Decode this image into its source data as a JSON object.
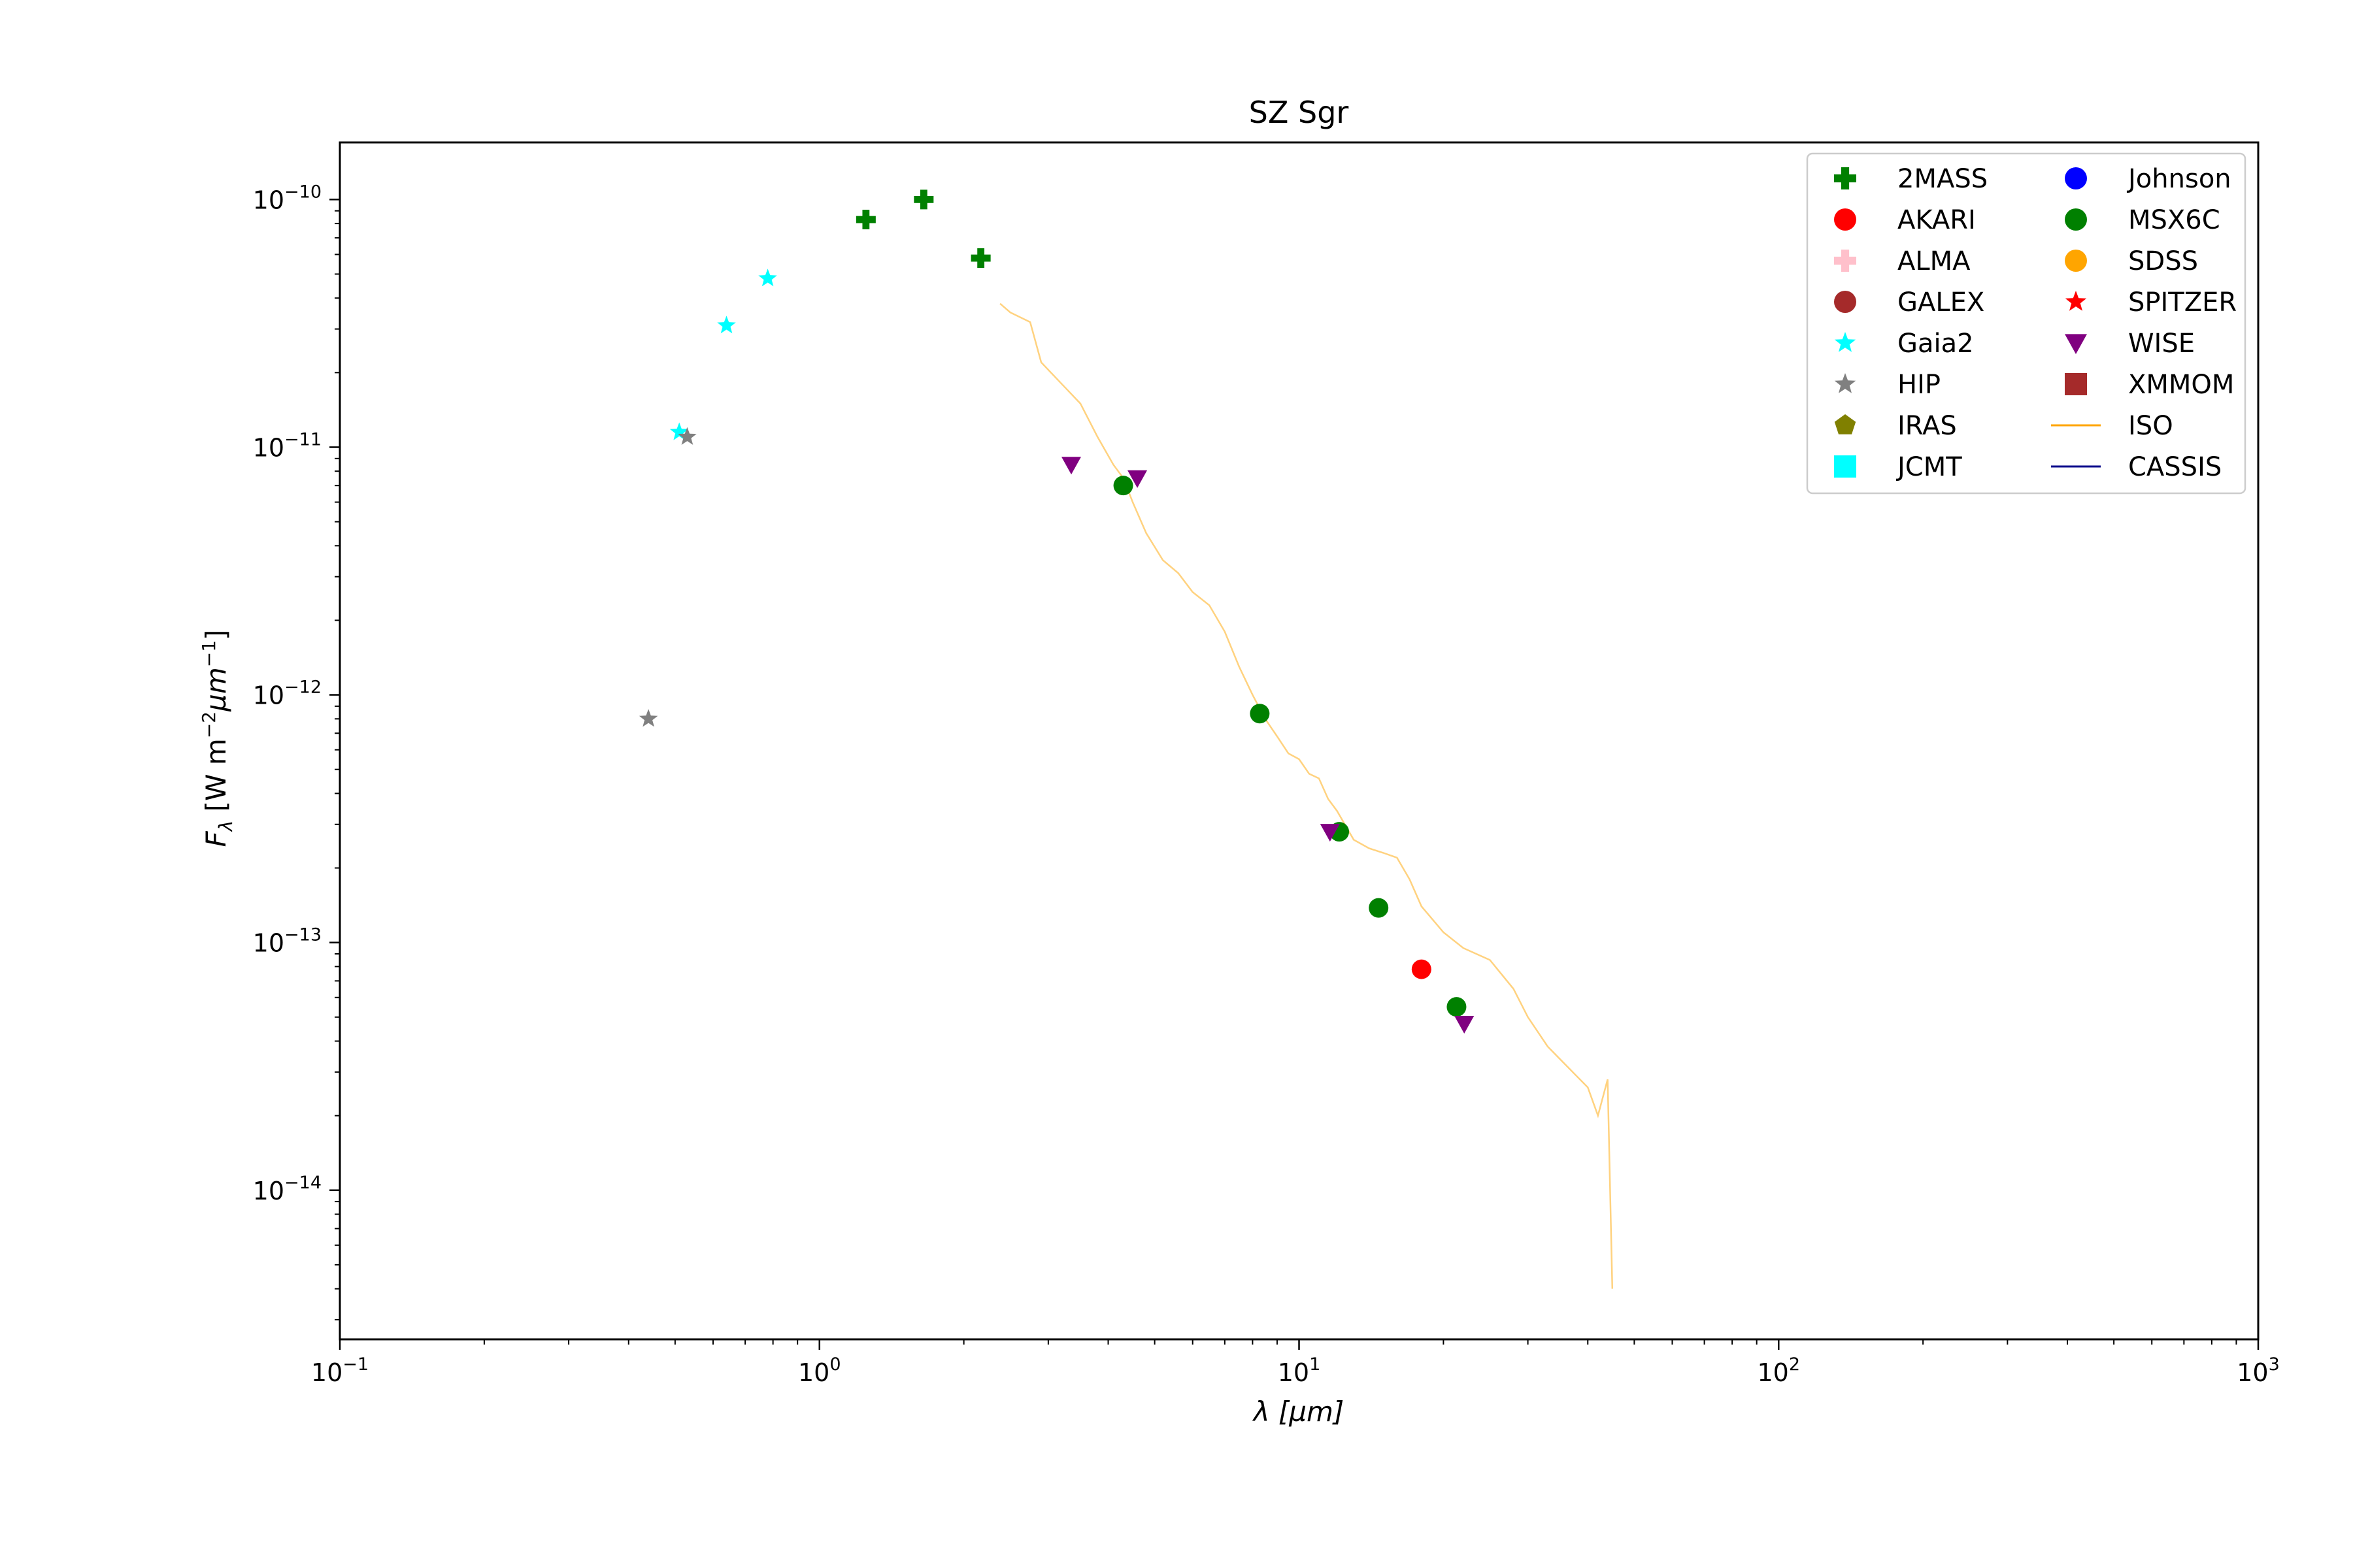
{
  "chart_data": {
    "type": "scatter",
    "title": "SZ Sgr",
    "xlabel": "λ [μm]",
    "ylabel": "F_λ [W m^-2 μm^-1]",
    "x_scale": "log",
    "y_scale": "log",
    "xlim": [
      0.1,
      1000
    ],
    "ylim": [
      2.5e-15,
      1.7e-10
    ],
    "x_ticks": [
      {
        "value": 0.1,
        "base": "10",
        "exp": "−1"
      },
      {
        "value": 1,
        "base": "10",
        "exp": "0"
      },
      {
        "value": 10,
        "base": "10",
        "exp": "1"
      },
      {
        "value": 100,
        "base": "10",
        "exp": "2"
      },
      {
        "value": 1000,
        "base": "10",
        "exp": "3"
      }
    ],
    "y_ticks": [
      {
        "value": 1e-14,
        "base": "10",
        "exp": "−14"
      },
      {
        "value": 1e-13,
        "base": "10",
        "exp": "−13"
      },
      {
        "value": 1e-12,
        "base": "10",
        "exp": "−12"
      },
      {
        "value": 1e-11,
        "base": "10",
        "exp": "−11"
      },
      {
        "value": 1e-10,
        "base": "10",
        "exp": "−10"
      }
    ],
    "grid": false,
    "legend_position": "top-right",
    "legend_columns": 2,
    "series": [
      {
        "name": "2MASS",
        "marker": "plus",
        "color": "#008000",
        "points": [
          [
            1.25,
            8.3e-11
          ],
          [
            1.65,
            1e-10
          ],
          [
            2.17,
            5.8e-11
          ]
        ]
      },
      {
        "name": "AKARI",
        "marker": "circle",
        "color": "#ff0000",
        "points": [
          [
            18.0,
            7.8e-14
          ]
        ]
      },
      {
        "name": "ALMA",
        "marker": "plus",
        "color": "#ffc0cb",
        "points": []
      },
      {
        "name": "GALEX",
        "marker": "circle",
        "color": "#a52a2a",
        "points": []
      },
      {
        "name": "Gaia2",
        "marker": "star",
        "color": "#00ffff",
        "points": [
          [
            0.51,
            1.15e-11
          ],
          [
            0.64,
            3.1e-11
          ],
          [
            0.78,
            4.8e-11
          ]
        ]
      },
      {
        "name": "HIP",
        "marker": "star",
        "color": "#808080",
        "points": [
          [
            0.44,
            8e-13
          ],
          [
            0.53,
            1.1e-11
          ]
        ]
      },
      {
        "name": "IRAS",
        "marker": "pentagon",
        "color": "#808000",
        "points": []
      },
      {
        "name": "JCMT",
        "marker": "square",
        "color": "#00ffff",
        "points": []
      },
      {
        "name": "Johnson",
        "marker": "circle",
        "color": "#0000ff",
        "points": []
      },
      {
        "name": "MSX6C",
        "marker": "circle",
        "color": "#008000",
        "points": [
          [
            4.3,
            7e-12
          ],
          [
            8.28,
            8.4e-13
          ],
          [
            12.13,
            2.8e-13
          ],
          [
            14.65,
            1.38e-13
          ],
          [
            21.3,
            5.5e-14
          ]
        ]
      },
      {
        "name": "SDSS",
        "marker": "circle",
        "color": "#ffa500",
        "points": []
      },
      {
        "name": "SPITZER",
        "marker": "star",
        "color": "#ff0000",
        "points": []
      },
      {
        "name": "WISE",
        "marker": "triangle-down",
        "color": "#800080",
        "points": [
          [
            3.35,
            8.5e-12
          ],
          [
            4.6,
            7.5e-12
          ],
          [
            11.6,
            2.8e-13
          ],
          [
            22.1,
            4.7e-14
          ]
        ]
      },
      {
        "name": "XMMOM",
        "marker": "square",
        "color": "#a52a2a",
        "points": []
      },
      {
        "name": "ISO",
        "marker": "line",
        "color": "#ffa500",
        "points": [
          [
            2.38,
            3.8e-11
          ],
          [
            2.5,
            3.5e-11
          ],
          [
            2.75,
            3.2e-11
          ],
          [
            2.9,
            2.2e-11
          ],
          [
            3.2,
            1.8e-11
          ],
          [
            3.5,
            1.5e-11
          ],
          [
            3.8,
            1.1e-11
          ],
          [
            4.1,
            8.5e-12
          ],
          [
            4.3,
            7.5e-12
          ],
          [
            4.5,
            6e-12
          ],
          [
            4.8,
            4.5e-12
          ],
          [
            5.2,
            3.5e-12
          ],
          [
            5.6,
            3.1e-12
          ],
          [
            6.0,
            2.6e-12
          ],
          [
            6.5,
            2.3e-12
          ],
          [
            7.0,
            1.8e-12
          ],
          [
            7.5,
            1.3e-12
          ],
          [
            8.0,
            1e-12
          ],
          [
            8.5,
            8e-13
          ],
          [
            9.0,
            6.8e-13
          ],
          [
            9.5,
            5.8e-13
          ],
          [
            10.0,
            5.5e-13
          ],
          [
            10.5,
            4.8e-13
          ],
          [
            11.0,
            4.6e-13
          ],
          [
            11.5,
            3.8e-13
          ],
          [
            12.0,
            3.4e-13
          ],
          [
            13.0,
            2.6e-13
          ],
          [
            14.0,
            2.4e-13
          ],
          [
            15.0,
            2.3e-13
          ],
          [
            16.0,
            2.2e-13
          ],
          [
            17.0,
            1.8e-13
          ],
          [
            18.0,
            1.4e-13
          ],
          [
            20.0,
            1.1e-13
          ],
          [
            22.0,
            9.5e-14
          ],
          [
            25.0,
            8.5e-14
          ],
          [
            28.0,
            6.5e-14
          ],
          [
            30.0,
            5e-14
          ],
          [
            33.0,
            3.8e-14
          ],
          [
            36.0,
            3.2e-14
          ],
          [
            40.0,
            2.6e-14
          ],
          [
            42.0,
            2e-14
          ],
          [
            44.0,
            2.8e-14
          ],
          [
            45.0,
            4e-15
          ]
        ]
      },
      {
        "name": "CASSIS",
        "marker": "line",
        "color": "#00008b",
        "points": []
      }
    ]
  }
}
